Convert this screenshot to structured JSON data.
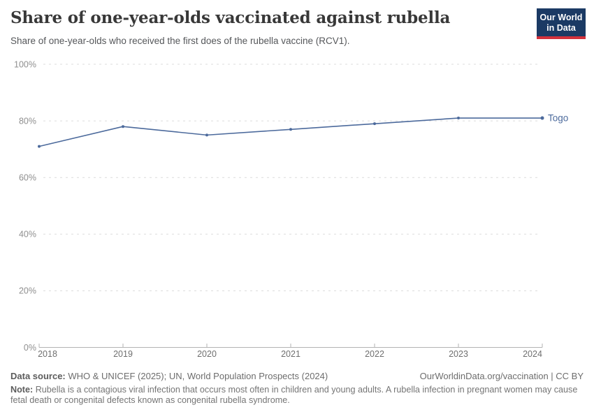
{
  "header": {
    "title": "Share of one-year-olds vaccinated against rubella",
    "subtitle": "Share of one-year-olds who received the first does of the rubella vaccine (RCV1).",
    "logo": {
      "line1": "Our World",
      "line2": "in Data"
    }
  },
  "chart_data": {
    "type": "line",
    "title": "Share of one-year-olds vaccinated against rubella",
    "x": [
      2018,
      2019,
      2020,
      2021,
      2022,
      2023,
      2024
    ],
    "series": [
      {
        "name": "Togo",
        "values": [
          71,
          78,
          75,
          77,
          79,
          81,
          81
        ],
        "color": "#4c6a9c"
      }
    ],
    "xlabel": "",
    "ylabel": "",
    "ylim": [
      0,
      100
    ],
    "yticks": [
      0,
      20,
      40,
      60,
      80,
      100
    ],
    "ytick_suffix": "%",
    "grid": "horizontal-dashed",
    "legend_position": "end-of-line-label"
  },
  "footer": {
    "datasource_label": "Data source:",
    "datasource": "WHO & UNICEF (2025); UN, World Population Prospects (2024)",
    "link": "OurWorldinData.org/vaccination | CC BY",
    "note_label": "Note:",
    "note": "Rubella is a contagious viral infection that occurs most often in children and young adults. A rubella infection in pregnant women may cause fetal death or congenital defects known as congenital rubella syndrome."
  },
  "colors": {
    "line": "#4c6a9c",
    "grid": "#dcdcdc",
    "axis": "#b3b3b3",
    "ytick_text": "#8f8f8f",
    "xtick_text": "#6f6f6f",
    "logo_bg": "#1b3a64",
    "logo_red": "#d3313c"
  }
}
